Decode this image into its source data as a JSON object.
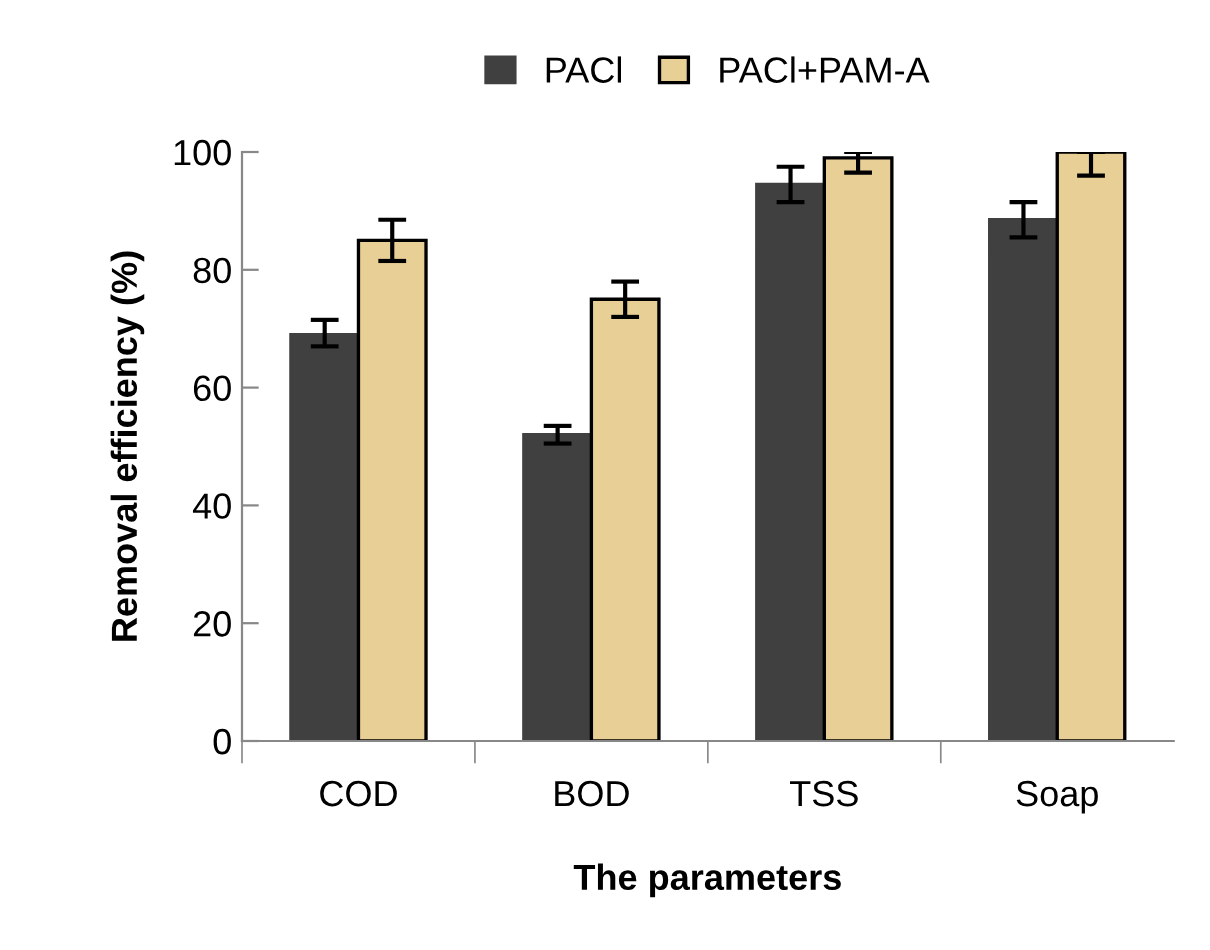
{
  "chart_data": {
    "type": "bar",
    "xlabel": "The parameters",
    "ylabel": "Removal efficiency (%)",
    "categories": [
      "COD",
      "BOD",
      "TSS",
      "Soap"
    ],
    "series": [
      {
        "name": "PACl",
        "color": "#404040",
        "values": [
          69,
          52,
          94.5,
          88.5
        ],
        "errors": [
          [
            67,
            71.5
          ],
          [
            50.5,
            53.5
          ],
          [
            91.5,
            97.5
          ],
          [
            85.5,
            91.5
          ]
        ]
      },
      {
        "name": "PACl+PAM-A",
        "color": "#e8cf96",
        "values": [
          85,
          75,
          99,
          100
        ],
        "errors": [
          [
            81.5,
            88.5
          ],
          [
            72,
            78
          ],
          [
            96.5,
            100
          ],
          [
            96,
            100
          ]
        ]
      }
    ],
    "ylim": [
      0,
      100
    ],
    "yticks": [
      0,
      20,
      40,
      60,
      80,
      100
    ],
    "grid": false,
    "legend": "top"
  }
}
